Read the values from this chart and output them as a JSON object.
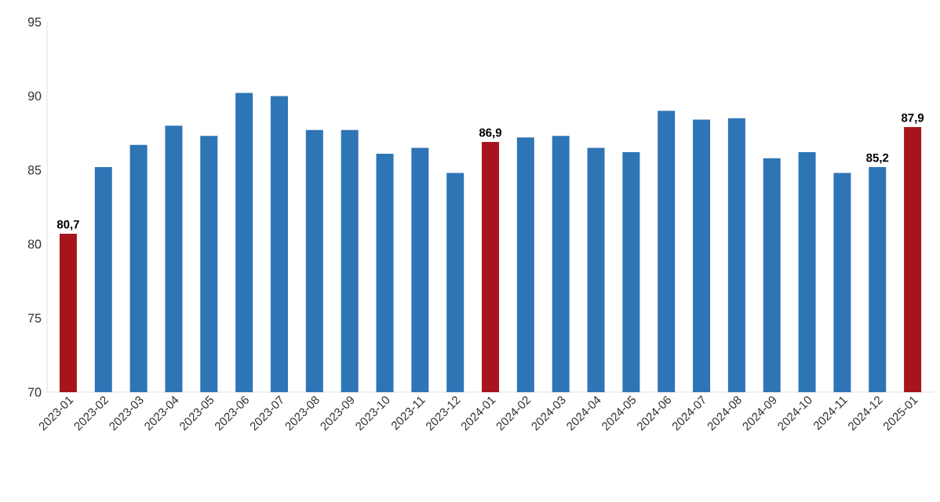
{
  "chart_data": {
    "type": "bar",
    "categories": [
      "2023-01",
      "2023-02",
      "2023-03",
      "2023-04",
      "2023-05",
      "2023-06",
      "2023-07",
      "2023-08",
      "2023-09",
      "2023-10",
      "2023-11",
      "2023-12",
      "2024-01",
      "2024-02",
      "2024-03",
      "2024-04",
      "2024-05",
      "2024-06",
      "2024-07",
      "2024-08",
      "2024-09",
      "2024-10",
      "2024-11",
      "2024-12",
      "2025-01"
    ],
    "values": [
      80.7,
      85.2,
      86.7,
      88.0,
      87.3,
      90.2,
      90.0,
      87.7,
      87.7,
      86.1,
      86.5,
      84.8,
      86.9,
      87.2,
      87.3,
      86.5,
      86.2,
      89.0,
      88.4,
      88.5,
      85.8,
      86.2,
      84.8,
      85.2,
      87.9
    ],
    "value_labels": [
      "80,7",
      null,
      null,
      null,
      null,
      null,
      null,
      null,
      null,
      null,
      null,
      null,
      "86,9",
      null,
      null,
      null,
      null,
      null,
      null,
      null,
      null,
      null,
      null,
      "85,2",
      "87,9"
    ],
    "colors": [
      "#a6151c",
      "#2e75b6",
      "#2e75b6",
      "#2e75b6",
      "#2e75b6",
      "#2e75b6",
      "#2e75b6",
      "#2e75b6",
      "#2e75b6",
      "#2e75b6",
      "#2e75b6",
      "#2e75b6",
      "#a6151c",
      "#2e75b6",
      "#2e75b6",
      "#2e75b6",
      "#2e75b6",
      "#2e75b6",
      "#2e75b6",
      "#2e75b6",
      "#2e75b6",
      "#2e75b6",
      "#2e75b6",
      "#2e75b6",
      "#a6151c"
    ],
    "ylim": [
      70,
      95
    ],
    "yticks": [
      70,
      75,
      80,
      85,
      90,
      95
    ]
  }
}
